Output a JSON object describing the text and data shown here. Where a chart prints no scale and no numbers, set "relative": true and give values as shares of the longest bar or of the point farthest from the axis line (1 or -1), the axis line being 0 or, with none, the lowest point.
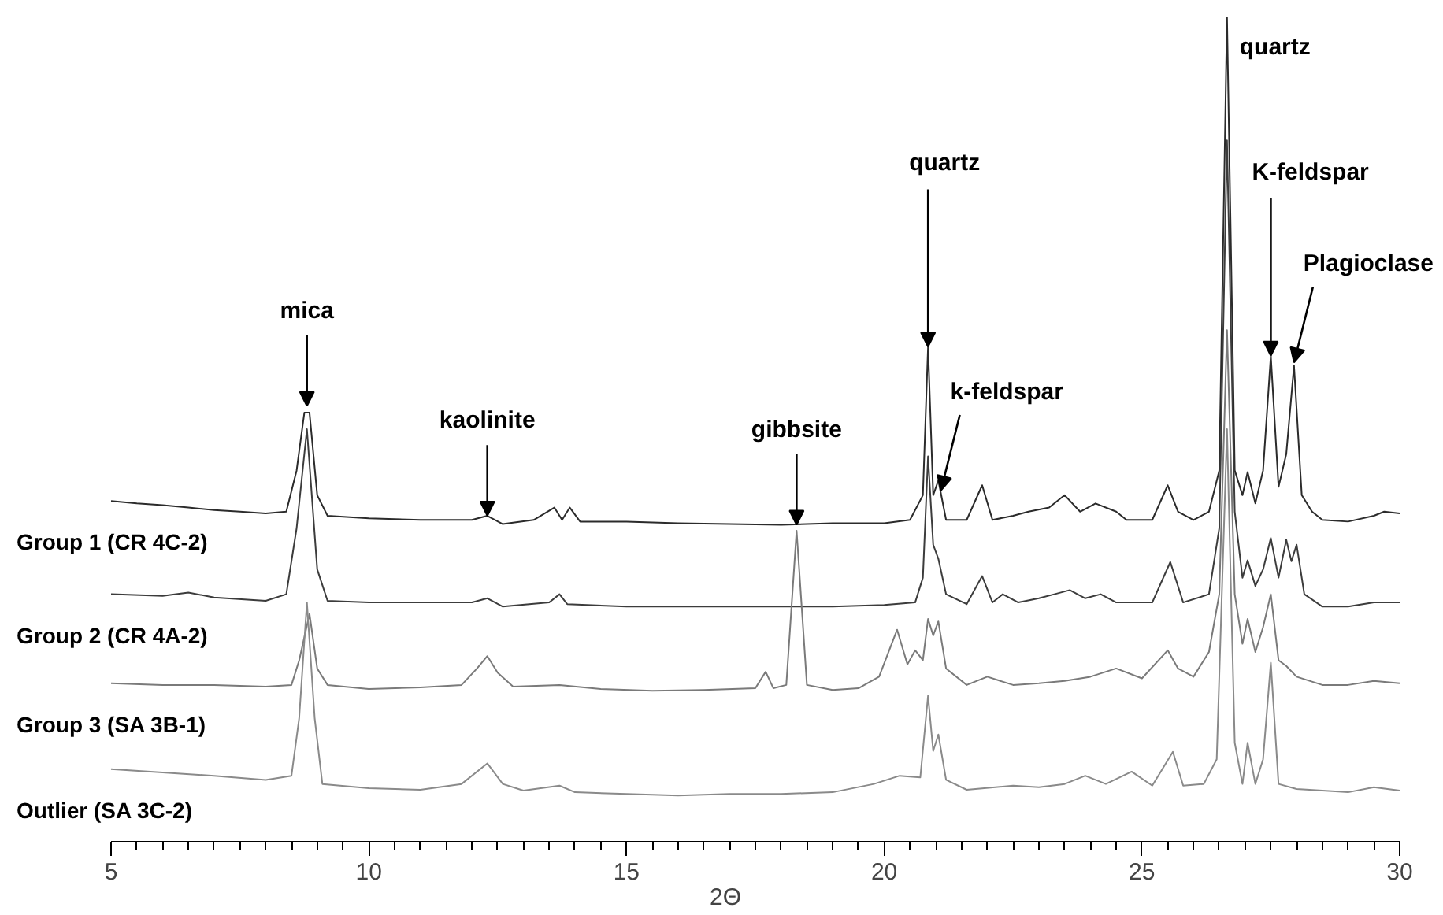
{
  "chart_data": {
    "type": "line",
    "relative": true,
    "xlabel": "2Θ",
    "xlim": [
      5,
      30
    ],
    "xticks": [
      5,
      10,
      15,
      20,
      25,
      30
    ],
    "grid": false,
    "marker": "none",
    "line_style": "solid",
    "series": [
      {
        "name": "Group 1 (CR 4C-2)",
        "color": "#2b2b2b",
        "x": [
          5,
          5.5,
          6,
          6.5,
          7,
          7.5,
          8,
          8.4,
          8.6,
          8.75,
          8.85,
          9.0,
          9.2,
          10,
          11,
          12,
          12.3,
          12.6,
          13.2,
          13.6,
          13.75,
          13.9,
          14.1,
          15,
          16,
          17,
          18,
          19,
          20,
          20.5,
          20.75,
          20.85,
          20.95,
          21.05,
          21.2,
          21.6,
          21.9,
          22.1,
          22.5,
          22.8,
          23.2,
          23.5,
          23.8,
          24.1,
          24.5,
          24.7,
          25.2,
          25.5,
          25.7,
          26.0,
          26.3,
          26.5,
          26.65,
          26.8,
          26.95,
          27.05,
          27.2,
          27.35,
          27.5,
          27.65,
          27.8,
          27.95,
          28.1,
          28.3,
          28.5,
          29,
          29.5,
          29.7,
          30
        ],
        "values": [
          0.413,
          0.41,
          0.408,
          0.405,
          0.402,
          0.4,
          0.398,
          0.4,
          0.45,
          0.52,
          0.52,
          0.42,
          0.395,
          0.392,
          0.39,
          0.39,
          0.395,
          0.385,
          0.39,
          0.405,
          0.39,
          0.405,
          0.388,
          0.388,
          0.386,
          0.385,
          0.384,
          0.386,
          0.386,
          0.39,
          0.42,
          0.6,
          0.42,
          0.438,
          0.39,
          0.39,
          0.432,
          0.39,
          0.395,
          0.4,
          0.405,
          0.42,
          0.4,
          0.41,
          0.4,
          0.39,
          0.39,
          0.432,
          0.4,
          0.39,
          0.4,
          0.45,
          1.0,
          0.45,
          0.42,
          0.448,
          0.41,
          0.45,
          0.589,
          0.43,
          0.47,
          0.577,
          0.42,
          0.4,
          0.39,
          0.388,
          0.395,
          0.4,
          0.398
        ]
      },
      {
        "name": "Group 2 (CR 4A-2)",
        "color": "#3c3c3c",
        "x": [
          5,
          6,
          6.5,
          7,
          8,
          8.4,
          8.6,
          8.8,
          9.0,
          9.2,
          10,
          11,
          12,
          12.3,
          12.6,
          13.5,
          13.7,
          13.85,
          15,
          16,
          17,
          18,
          19,
          20,
          20.6,
          20.75,
          20.85,
          20.95,
          21.05,
          21.2,
          21.6,
          21.9,
          22.1,
          22.3,
          22.6,
          23,
          23.3,
          23.6,
          23.9,
          24.2,
          24.5,
          25.2,
          25.55,
          25.8,
          26.3,
          26.5,
          26.65,
          26.8,
          26.95,
          27.05,
          27.2,
          27.35,
          27.5,
          27.65,
          27.8,
          27.9,
          28.0,
          28.15,
          28.5,
          29,
          29.5,
          30
        ],
        "values": [
          0.3,
          0.298,
          0.302,
          0.296,
          0.292,
          0.3,
          0.38,
          0.5,
          0.33,
          0.292,
          0.29,
          0.29,
          0.29,
          0.295,
          0.285,
          0.29,
          0.3,
          0.288,
          0.285,
          0.285,
          0.285,
          0.285,
          0.285,
          0.287,
          0.29,
          0.32,
          0.467,
          0.36,
          0.343,
          0.3,
          0.288,
          0.322,
          0.29,
          0.3,
          0.29,
          0.295,
          0.3,
          0.305,
          0.295,
          0.3,
          0.29,
          0.29,
          0.339,
          0.29,
          0.3,
          0.38,
          0.85,
          0.4,
          0.32,
          0.341,
          0.31,
          0.33,
          0.368,
          0.32,
          0.366,
          0.34,
          0.36,
          0.3,
          0.285,
          0.285,
          0.29,
          0.29
        ]
      },
      {
        "name": "Group 3 (SA 3B-1)",
        "color": "#7a7a7a",
        "x": [
          5,
          6,
          7,
          8,
          8.5,
          8.65,
          8.85,
          9.0,
          9.2,
          10,
          11,
          11.8,
          12.1,
          12.3,
          12.5,
          12.8,
          13.7,
          14.5,
          15.5,
          16.5,
          17.5,
          17.7,
          17.85,
          18.1,
          18.3,
          18.5,
          19,
          19.5,
          19.9,
          20.25,
          20.45,
          20.6,
          20.75,
          20.85,
          20.95,
          21.05,
          21.2,
          21.6,
          22.0,
          22.5,
          23,
          23.5,
          24,
          24.5,
          25,
          25.5,
          25.7,
          26.0,
          26.3,
          26.5,
          26.65,
          26.8,
          26.95,
          27.05,
          27.2,
          27.35,
          27.5,
          27.65,
          27.8,
          28.0,
          28.5,
          29,
          29.5,
          30
        ],
        "values": [
          0.192,
          0.19,
          0.19,
          0.188,
          0.19,
          0.22,
          0.276,
          0.21,
          0.19,
          0.185,
          0.187,
          0.19,
          0.21,
          0.225,
          0.205,
          0.188,
          0.19,
          0.185,
          0.183,
          0.184,
          0.186,
          0.206,
          0.186,
          0.19,
          0.377,
          0.19,
          0.184,
          0.186,
          0.2,
          0.257,
          0.215,
          0.232,
          0.22,
          0.27,
          0.25,
          0.267,
          0.21,
          0.19,
          0.2,
          0.19,
          0.192,
          0.195,
          0.2,
          0.21,
          0.198,
          0.232,
          0.21,
          0.2,
          0.23,
          0.3,
          0.62,
          0.3,
          0.24,
          0.27,
          0.23,
          0.26,
          0.3,
          0.22,
          0.213,
          0.2,
          0.19,
          0.19,
          0.195,
          0.192
        ]
      },
      {
        "name": "Outlier (SA 3C-2)",
        "color": "#8a8a8a",
        "x": [
          5,
          6,
          7,
          8,
          8.5,
          8.65,
          8.8,
          8.95,
          9.1,
          10,
          11,
          11.8,
          12.3,
          12.6,
          13,
          13.7,
          14,
          15,
          16,
          17,
          18,
          19,
          19.8,
          20.3,
          20.7,
          20.85,
          20.95,
          21.05,
          21.2,
          21.6,
          22.5,
          23,
          23.5,
          23.9,
          24.3,
          24.8,
          25.2,
          25.6,
          25.8,
          26.2,
          26.45,
          26.65,
          26.8,
          26.95,
          27.05,
          27.2,
          27.35,
          27.5,
          27.65,
          28,
          28.5,
          29,
          29.5,
          30
        ],
        "values": [
          0.088,
          0.084,
          0.08,
          0.075,
          0.08,
          0.15,
          0.29,
          0.15,
          0.07,
          0.065,
          0.063,
          0.07,
          0.095,
          0.07,
          0.062,
          0.068,
          0.06,
          0.058,
          0.056,
          0.058,
          0.058,
          0.06,
          0.07,
          0.08,
          0.078,
          0.177,
          0.11,
          0.13,
          0.075,
          0.063,
          0.068,
          0.066,
          0.07,
          0.08,
          0.07,
          0.085,
          0.068,
          0.109,
          0.068,
          0.07,
          0.1,
          0.5,
          0.12,
          0.07,
          0.12,
          0.07,
          0.1,
          0.217,
          0.07,
          0.064,
          0.062,
          0.06,
          0.066,
          0.062
        ]
      }
    ],
    "annotations": [
      {
        "text": "mica",
        "x": 8.8,
        "y": 0.528
      },
      {
        "text": "kaolinite",
        "x": 12.3,
        "y": 0.395
      },
      {
        "text": "gibbsite",
        "x": 18.3,
        "y": 0.384
      },
      {
        "text": "quartz",
        "x": 20.85,
        "y": 0.6
      },
      {
        "text": "k-feldspar",
        "x": 21.1,
        "y": 0.422
      },
      {
        "text": "quartz",
        "x": 26.65,
        "y": 1.0
      },
      {
        "text": "K-feldspar",
        "x": 27.5,
        "y": 0.589
      },
      {
        "text": "Plagioclase",
        "x": 27.95,
        "y": 0.577
      }
    ]
  }
}
